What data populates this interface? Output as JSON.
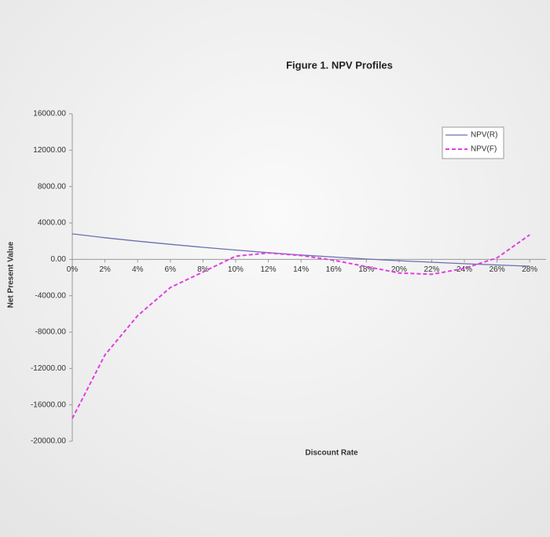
{
  "chart_data": {
    "type": "line",
    "title": "Figure 1. NPV Profiles",
    "x_label": "Discount Rate",
    "y_label": "Net Present Value",
    "x": [
      0,
      2,
      4,
      6,
      8,
      10,
      12,
      14,
      16,
      18,
      20,
      22,
      24,
      26,
      28
    ],
    "series": [
      {
        "name": "NPV(R)",
        "color": "#6b6fb0",
        "dash": false,
        "values": [
          2800,
          2380,
          2000,
          1650,
          1320,
          1020,
          740,
          480,
          250,
          40,
          -150,
          -320,
          -480,
          -620,
          -760
        ]
      },
      {
        "name": "NPV(F)",
        "color": "#e040e0",
        "dash": true,
        "values": [
          -17500,
          -10500,
          -6200,
          -3100,
          -1400,
          350,
          700,
          430,
          -100,
          -800,
          -1500,
          -1650,
          -1000,
          170,
          2700
        ]
      }
    ],
    "xlim": [
      0,
      29
    ],
    "xticks": [
      {
        "value": 0,
        "label": "0%"
      },
      {
        "value": 2,
        "label": "2%"
      },
      {
        "value": 4,
        "label": "4%"
      },
      {
        "value": 6,
        "label": "6%"
      },
      {
        "value": 8,
        "label": "8%"
      },
      {
        "value": 10,
        "label": "10%"
      },
      {
        "value": 12,
        "label": "12%"
      },
      {
        "value": 14,
        "label": "14%"
      },
      {
        "value": 16,
        "label": "16%"
      },
      {
        "value": 18,
        "label": "18%"
      },
      {
        "value": 20,
        "label": "20%"
      },
      {
        "value": 22,
        "label": "22%"
      },
      {
        "value": 24,
        "label": "24%"
      },
      {
        "value": 26,
        "label": "26%"
      },
      {
        "value": 28,
        "label": "28%"
      }
    ],
    "ylim": [
      -20000,
      16000
    ],
    "yticks": [
      {
        "value": 16000,
        "label": "16000.00"
      },
      {
        "value": 12000,
        "label": "12000.00"
      },
      {
        "value": 8000,
        "label": "8000.00"
      },
      {
        "value": 4000,
        "label": "4000.00"
      },
      {
        "value": 0,
        "label": "0.00"
      },
      {
        "value": -4000,
        "label": "-4000.00"
      },
      {
        "value": -8000,
        "label": "-8000.00"
      },
      {
        "value": -12000,
        "label": "-12000.00"
      },
      {
        "value": -16000,
        "label": "-16000.00"
      },
      {
        "value": -20000,
        "label": "-20000.00"
      }
    ],
    "grid": false,
    "legend": "upper right"
  }
}
